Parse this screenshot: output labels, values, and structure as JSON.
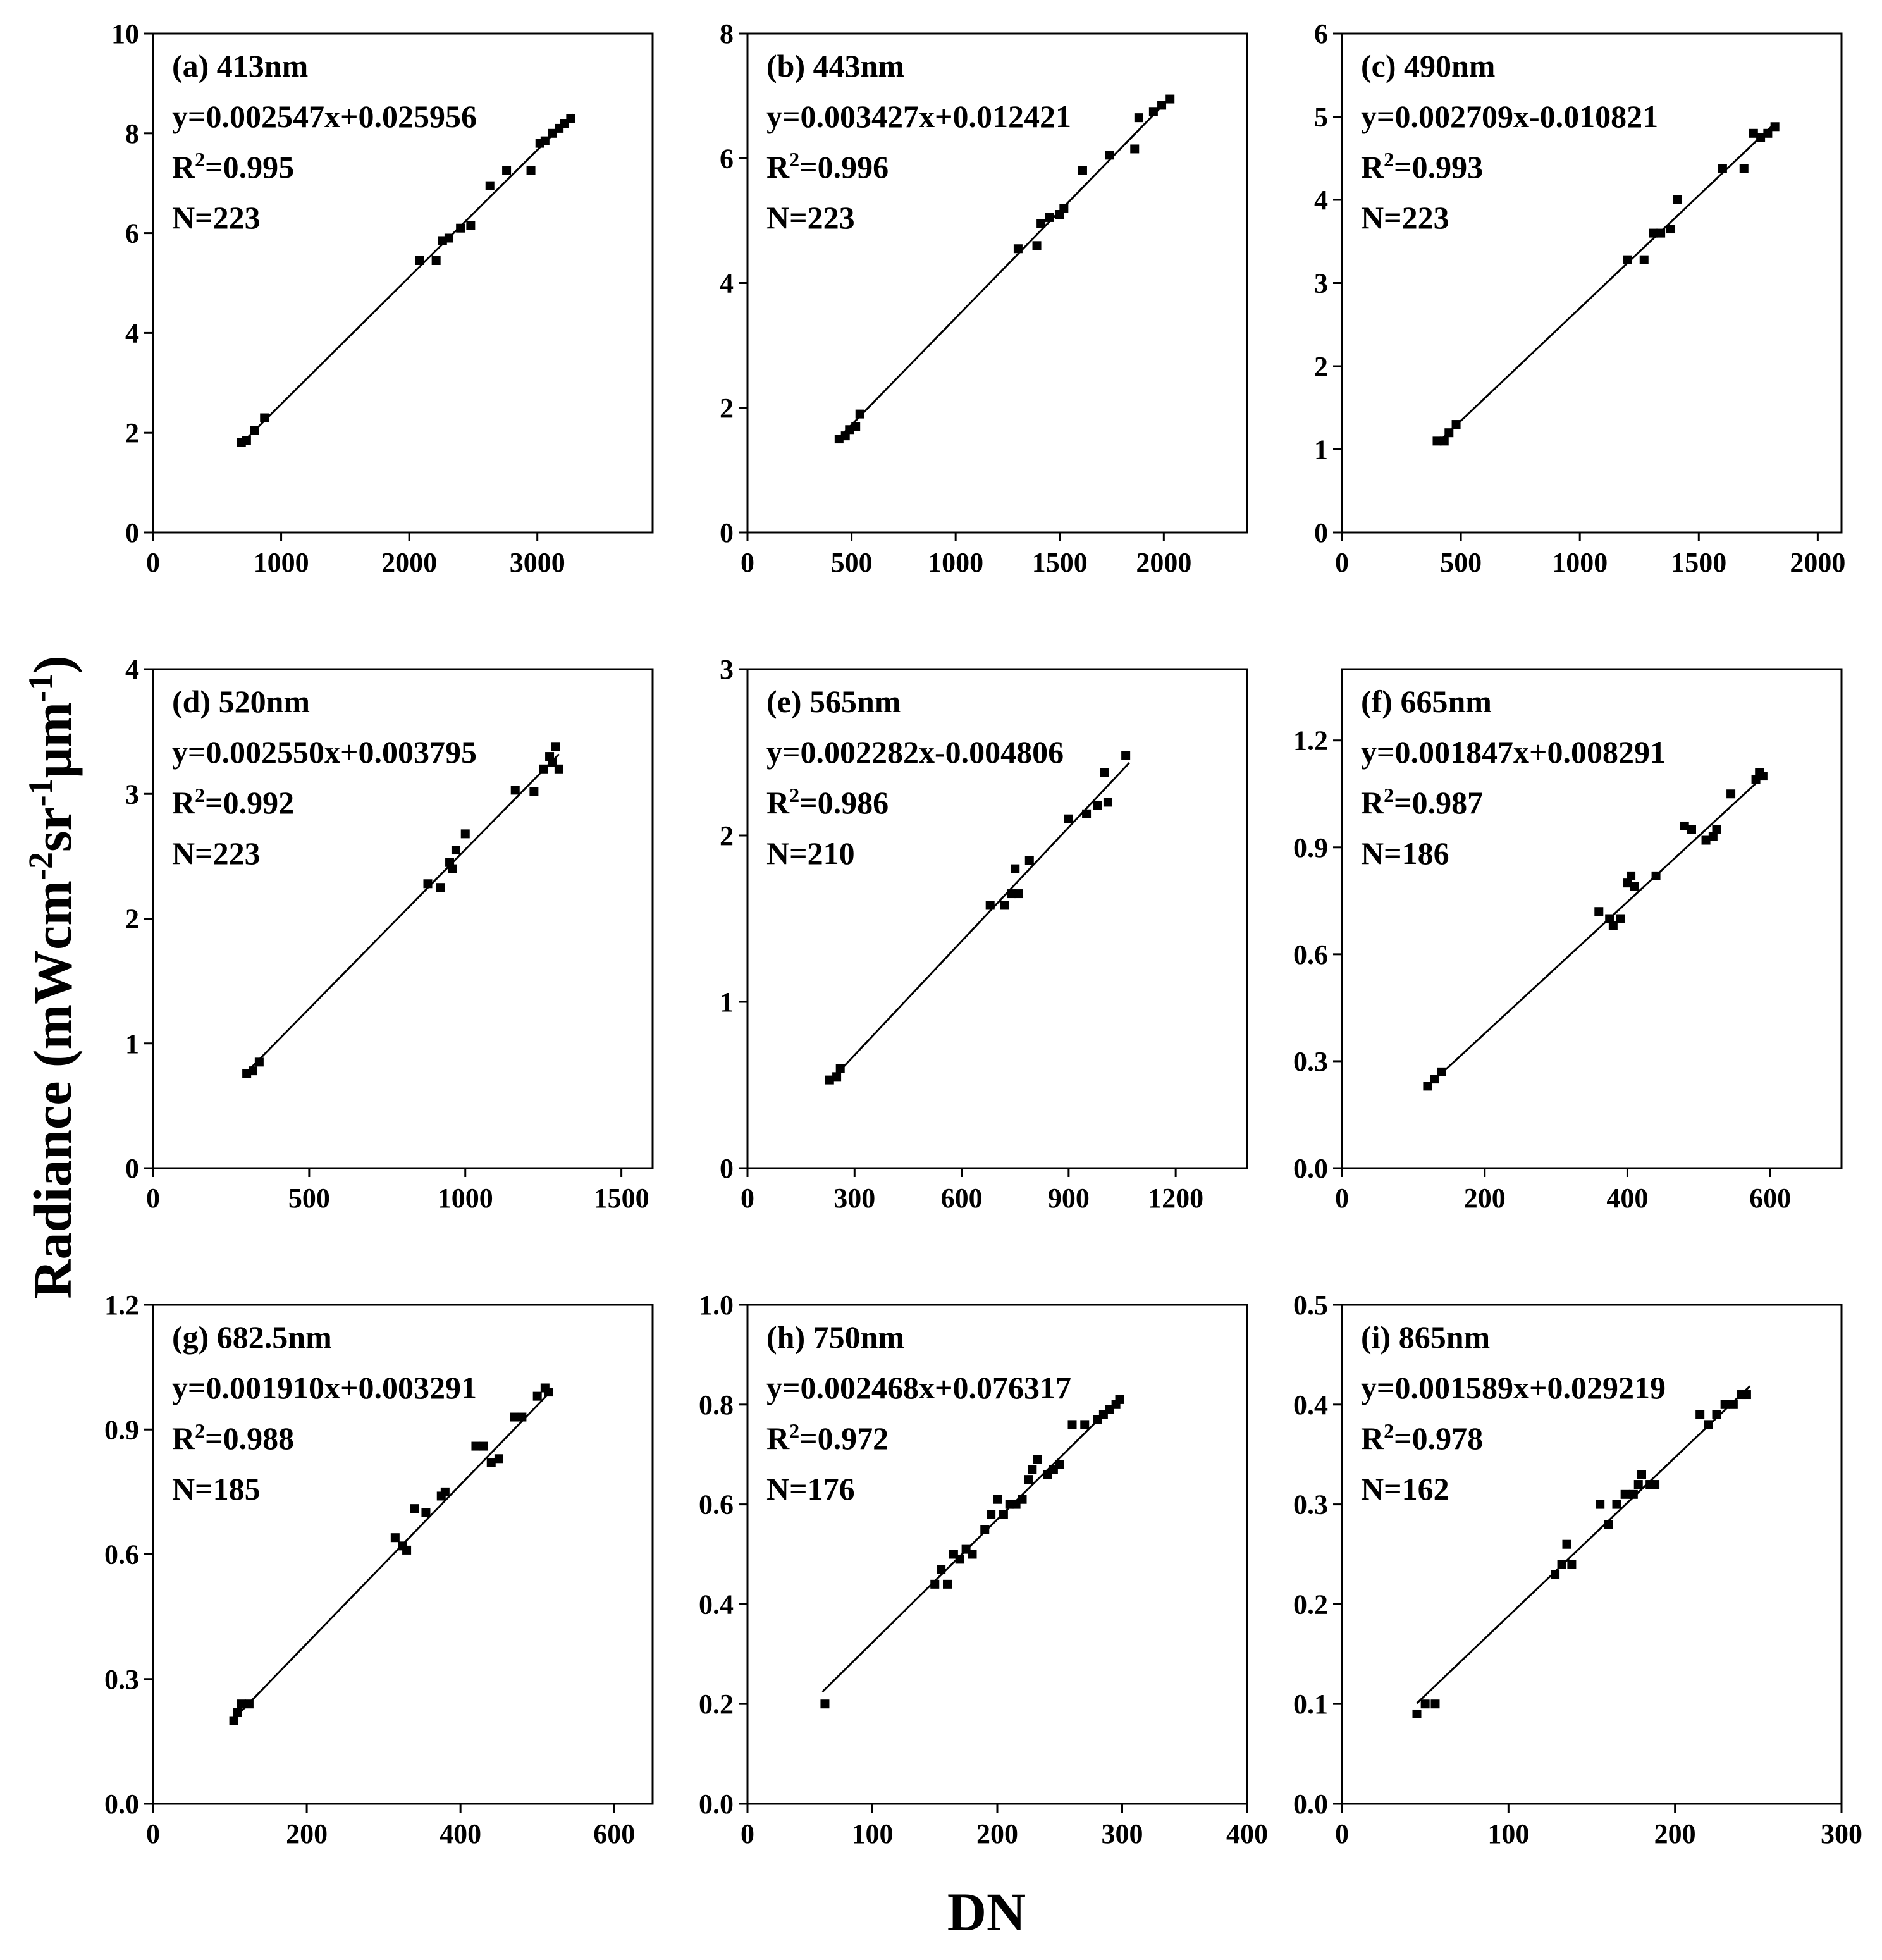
{
  "figure": {
    "ylabel_main": "Radiance (mWcm",
    "ylabel_sup1": "-2",
    "ylabel_mid1": "sr",
    "ylabel_sup2": "-1",
    "ylabel_mid2": "μm",
    "ylabel_sup3": "-1",
    "ylabel_end": ")",
    "xlabel": "DN"
  },
  "chart_data": [
    {
      "type": "scatter",
      "title": "(a) 413nm",
      "equation": "y=0.002547x+0.025956",
      "r2_label": "R",
      "r2_sup": "2",
      "r2_value": "=0.995",
      "n_label": "N=223",
      "slope": 0.002547,
      "intercept": 0.025956,
      "xlim": [
        0,
        3900
      ],
      "ylim": [
        0,
        10
      ],
      "xticks": [
        0,
        1000,
        2000,
        3000
      ],
      "xticklabels": [
        "0",
        "1000",
        "2000",
        "3000"
      ],
      "yticks": [
        0,
        2,
        4,
        6,
        8,
        10
      ],
      "yticklabels": [
        "0",
        "2",
        "4",
        "6",
        "8",
        "10"
      ],
      "fit_x": [
        690,
        3280
      ],
      "points": [
        [
          690,
          1.8
        ],
        [
          730,
          1.85
        ],
        [
          790,
          2.05
        ],
        [
          870,
          2.3
        ],
        [
          2080,
          5.45
        ],
        [
          2210,
          5.45
        ],
        [
          2260,
          5.85
        ],
        [
          2310,
          5.9
        ],
        [
          2400,
          6.1
        ],
        [
          2480,
          6.15
        ],
        [
          2630,
          6.95
        ],
        [
          2760,
          7.25
        ],
        [
          2950,
          7.25
        ],
        [
          3020,
          7.8
        ],
        [
          3060,
          7.85
        ],
        [
          3120,
          8.0
        ],
        [
          3170,
          8.1
        ],
        [
          3210,
          8.2
        ],
        [
          3260,
          8.3
        ]
      ]
    },
    {
      "type": "scatter",
      "title": "(b) 443nm",
      "equation": "y=0.003427x+0.012421",
      "r2_label": "R",
      "r2_sup": "2",
      "r2_value": "=0.996",
      "n_label": "N=223",
      "slope": 0.003427,
      "intercept": 0.012421,
      "xlim": [
        0,
        2400
      ],
      "ylim": [
        0,
        8
      ],
      "xticks": [
        0,
        500,
        1000,
        1500,
        2000
      ],
      "xticklabels": [
        "0",
        "500",
        "1000",
        "1500",
        "2000"
      ],
      "yticks": [
        0,
        2,
        4,
        6,
        8
      ],
      "yticklabels": [
        "0",
        "2",
        "4",
        "6",
        "8"
      ],
      "fit_x": [
        440,
        2040
      ],
      "points": [
        [
          440,
          1.5
        ],
        [
          470,
          1.55
        ],
        [
          490,
          1.65
        ],
        [
          520,
          1.7
        ],
        [
          540,
          1.9
        ],
        [
          1300,
          4.55
        ],
        [
          1390,
          4.6
        ],
        [
          1410,
          4.95
        ],
        [
          1450,
          5.05
        ],
        [
          1500,
          5.1
        ],
        [
          1520,
          5.2
        ],
        [
          1610,
          5.8
        ],
        [
          1740,
          6.05
        ],
        [
          1860,
          6.15
        ],
        [
          1880,
          6.65
        ],
        [
          1950,
          6.75
        ],
        [
          1990,
          6.85
        ],
        [
          2030,
          6.95
        ]
      ]
    },
    {
      "type": "scatter",
      "title": "(c) 490nm",
      "equation": "y=0.002709x-0.010821",
      "r2_label": "R",
      "r2_sup": "2",
      "r2_value": "=0.993",
      "n_label": "N=223",
      "slope": 0.002709,
      "intercept": -0.010821,
      "xlim": [
        0,
        2100
      ],
      "ylim": [
        0,
        6
      ],
      "xticks": [
        0,
        500,
        1000,
        1500,
        2000
      ],
      "xticklabels": [
        "0",
        "500",
        "1000",
        "1500",
        "2000"
      ],
      "yticks": [
        0,
        1,
        2,
        3,
        4,
        5,
        6
      ],
      "yticklabels": [
        "0",
        "1",
        "2",
        "3",
        "4",
        "5",
        "6"
      ],
      "fit_x": [
        400,
        1820
      ],
      "points": [
        [
          400,
          1.1
        ],
        [
          430,
          1.1
        ],
        [
          450,
          1.2
        ],
        [
          480,
          1.3
        ],
        [
          1200,
          3.28
        ],
        [
          1270,
          3.28
        ],
        [
          1310,
          3.6
        ],
        [
          1340,
          3.6
        ],
        [
          1380,
          3.65
        ],
        [
          1410,
          4.0
        ],
        [
          1600,
          4.38
        ],
        [
          1690,
          4.38
        ],
        [
          1730,
          4.8
        ],
        [
          1760,
          4.75
        ],
        [
          1790,
          4.8
        ],
        [
          1820,
          4.88
        ]
      ]
    },
    {
      "type": "scatter",
      "title": "(d) 520nm",
      "equation": "y=0.002550x+0.003795",
      "r2_label": "R",
      "r2_sup": "2",
      "r2_value": "=0.992",
      "n_label": "N=223",
      "slope": 0.00255,
      "intercept": 0.003795,
      "xlim": [
        0,
        1600
      ],
      "ylim": [
        0,
        4
      ],
      "xticks": [
        0,
        500,
        1000,
        1500
      ],
      "xticklabels": [
        "0",
        "500",
        "1000",
        "1500"
      ],
      "yticks": [
        0,
        1,
        2,
        3,
        4
      ],
      "yticklabels": [
        "0",
        "1",
        "2",
        "3",
        "4"
      ],
      "fit_x": [
        300,
        1300
      ],
      "points": [
        [
          300,
          0.76
        ],
        [
          320,
          0.78
        ],
        [
          340,
          0.85
        ],
        [
          880,
          2.28
        ],
        [
          920,
          2.25
        ],
        [
          950,
          2.45
        ],
        [
          960,
          2.4
        ],
        [
          970,
          2.55
        ],
        [
          1000,
          2.68
        ],
        [
          1160,
          3.03
        ],
        [
          1220,
          3.02
        ],
        [
          1250,
          3.2
        ],
        [
          1270,
          3.3
        ],
        [
          1280,
          3.25
        ],
        [
          1290,
          3.38
        ],
        [
          1300,
          3.2
        ]
      ]
    },
    {
      "type": "scatter",
      "title": "(e) 565nm",
      "equation": "y=0.002282x-0.004806",
      "r2_label": "R",
      "r2_sup": "2",
      "r2_value": "=0.986",
      "n_label": "N=210",
      "slope": 0.002282,
      "intercept": -0.004806,
      "xlim": [
        0,
        1400
      ],
      "ylim": [
        0,
        3
      ],
      "xticks": [
        0,
        300,
        600,
        900,
        1200
      ],
      "xticklabels": [
        "0",
        "300",
        "600",
        "900",
        "1200"
      ],
      "yticks": [
        0,
        1,
        2,
        3
      ],
      "yticklabels": [
        "0",
        "1",
        "2",
        "3"
      ],
      "fit_x": [
        230,
        1070
      ],
      "points": [
        [
          230,
          0.53
        ],
        [
          250,
          0.55
        ],
        [
          260,
          0.6
        ],
        [
          680,
          1.58
        ],
        [
          720,
          1.58
        ],
        [
          740,
          1.65
        ],
        [
          750,
          1.8
        ],
        [
          760,
          1.65
        ],
        [
          790,
          1.85
        ],
        [
          900,
          2.1
        ],
        [
          950,
          2.13
        ],
        [
          980,
          2.18
        ],
        [
          1000,
          2.38
        ],
        [
          1010,
          2.2
        ],
        [
          1060,
          2.48
        ]
      ]
    },
    {
      "type": "scatter",
      "title": "(f) 665nm",
      "equation": "y=0.001847x+0.008291",
      "r2_label": "R",
      "r2_sup": "2",
      "r2_value": "=0.987",
      "n_label": "N=186",
      "slope": 0.001847,
      "intercept": 0.008291,
      "xlim": [
        0,
        700
      ],
      "ylim": [
        0,
        1.4
      ],
      "xticks": [
        0,
        200,
        400,
        600
      ],
      "xticklabels": [
        "0",
        "200",
        "400",
        "600"
      ],
      "yticks": [
        0,
        0.3,
        0.6,
        0.9,
        1.2
      ],
      "yticklabels": [
        "0.0",
        "0.3",
        "0.6",
        "0.9",
        "1.2"
      ],
      "fit_x": [
        120,
        590
      ],
      "points": [
        [
          120,
          0.23
        ],
        [
          130,
          0.25
        ],
        [
          140,
          0.27
        ],
        [
          360,
          0.72
        ],
        [
          375,
          0.7
        ],
        [
          380,
          0.68
        ],
        [
          390,
          0.7
        ],
        [
          400,
          0.8
        ],
        [
          405,
          0.82
        ],
        [
          410,
          0.79
        ],
        [
          440,
          0.82
        ],
        [
          480,
          0.96
        ],
        [
          490,
          0.95
        ],
        [
          510,
          0.92
        ],
        [
          520,
          0.93
        ],
        [
          525,
          0.95
        ],
        [
          545,
          1.05
        ],
        [
          580,
          1.09
        ],
        [
          585,
          1.11
        ],
        [
          590,
          1.1
        ]
      ]
    },
    {
      "type": "scatter",
      "title": "(g) 682.5nm",
      "equation": "y=0.001910x+0.003291",
      "r2_label": "R",
      "r2_sup": "2",
      "r2_value": "=0.988",
      "n_label": "N=185",
      "slope": 0.00191,
      "intercept": 0.003291,
      "xlim": [
        0,
        650
      ],
      "ylim": [
        0,
        1.2
      ],
      "xticks": [
        0,
        200,
        400,
        600
      ],
      "xticklabels": [
        "0",
        "200",
        "400",
        "600"
      ],
      "yticks": [
        0,
        0.3,
        0.6,
        0.9,
        1.2
      ],
      "yticklabels": [
        "0.0",
        "0.3",
        "0.6",
        "0.9",
        "1.2"
      ],
      "fit_x": [
        105,
        520
      ],
      "points": [
        [
          105,
          0.2
        ],
        [
          110,
          0.22
        ],
        [
          115,
          0.24
        ],
        [
          125,
          0.24
        ],
        [
          315,
          0.64
        ],
        [
          325,
          0.62
        ],
        [
          330,
          0.61
        ],
        [
          340,
          0.71
        ],
        [
          355,
          0.7
        ],
        [
          375,
          0.74
        ],
        [
          380,
          0.75
        ],
        [
          420,
          0.86
        ],
        [
          430,
          0.86
        ],
        [
          440,
          0.82
        ],
        [
          450,
          0.83
        ],
        [
          470,
          0.93
        ],
        [
          480,
          0.93
        ],
        [
          500,
          0.98
        ],
        [
          510,
          1.0
        ],
        [
          515,
          0.99
        ]
      ]
    },
    {
      "type": "scatter",
      "title": "(h) 750nm",
      "equation": "y=0.002468x+0.076317",
      "r2_label": "R",
      "r2_sup": "2",
      "r2_value": "=0.972",
      "n_label": "N=176",
      "slope": 0.002468,
      "intercept": 0.076317,
      "xlim": [
        0,
        400
      ],
      "ylim": [
        0,
        1.0
      ],
      "xticks": [
        0,
        100,
        200,
        300,
        400
      ],
      "xticklabels": [
        "0",
        "100",
        "200",
        "300",
        "400"
      ],
      "yticks": [
        0,
        0.2,
        0.4,
        0.6,
        0.8,
        1.0
      ],
      "yticklabels": [
        "0.0",
        "0.2",
        "0.4",
        "0.6",
        "0.8",
        "1.0"
      ],
      "fit_x": [
        60,
        300
      ],
      "points": [
        [
          62,
          0.2
        ],
        [
          150,
          0.44
        ],
        [
          155,
          0.47
        ],
        [
          160,
          0.44
        ],
        [
          165,
          0.5
        ],
        [
          170,
          0.49
        ],
        [
          175,
          0.51
        ],
        [
          180,
          0.5
        ],
        [
          190,
          0.55
        ],
        [
          195,
          0.58
        ],
        [
          200,
          0.61
        ],
        [
          205,
          0.58
        ],
        [
          210,
          0.6
        ],
        [
          215,
          0.6
        ],
        [
          220,
          0.61
        ],
        [
          225,
          0.65
        ],
        [
          228,
          0.67
        ],
        [
          232,
          0.69
        ],
        [
          240,
          0.66
        ],
        [
          245,
          0.67
        ],
        [
          250,
          0.68
        ],
        [
          260,
          0.76
        ],
        [
          270,
          0.76
        ],
        [
          280,
          0.77
        ],
        [
          285,
          0.78
        ],
        [
          290,
          0.79
        ],
        [
          295,
          0.8
        ],
        [
          298,
          0.81
        ]
      ]
    },
    {
      "type": "scatter",
      "title": "(i) 865nm",
      "equation": "y=0.001589x+0.029219",
      "r2_label": "R",
      "r2_sup": "2",
      "r2_value": "=0.978",
      "n_label": "N=162",
      "slope": 0.001589,
      "intercept": 0.029219,
      "xlim": [
        0,
        300
      ],
      "ylim": [
        0,
        0.5
      ],
      "xticks": [
        0,
        100,
        200,
        300
      ],
      "xticklabels": [
        "0",
        "100",
        "200",
        "300"
      ],
      "yticks": [
        0,
        0.1,
        0.2,
        0.3,
        0.4,
        0.5
      ],
      "yticklabels": [
        "0.0",
        "0.1",
        "0.2",
        "0.3",
        "0.4",
        "0.5"
      ],
      "fit_x": [
        45,
        245
      ],
      "points": [
        [
          45,
          0.09
        ],
        [
          50,
          0.1
        ],
        [
          56,
          0.1
        ],
        [
          128,
          0.23
        ],
        [
          132,
          0.24
        ],
        [
          135,
          0.26
        ],
        [
          138,
          0.24
        ],
        [
          155,
          0.3
        ],
        [
          160,
          0.28
        ],
        [
          165,
          0.3
        ],
        [
          170,
          0.31
        ],
        [
          175,
          0.31
        ],
        [
          178,
          0.32
        ],
        [
          180,
          0.33
        ],
        [
          185,
          0.32
        ],
        [
          188,
          0.32
        ],
        [
          215,
          0.39
        ],
        [
          220,
          0.38
        ],
        [
          225,
          0.39
        ],
        [
          230,
          0.4
        ],
        [
          235,
          0.4
        ],
        [
          240,
          0.41
        ],
        [
          243,
          0.41
        ]
      ]
    }
  ]
}
